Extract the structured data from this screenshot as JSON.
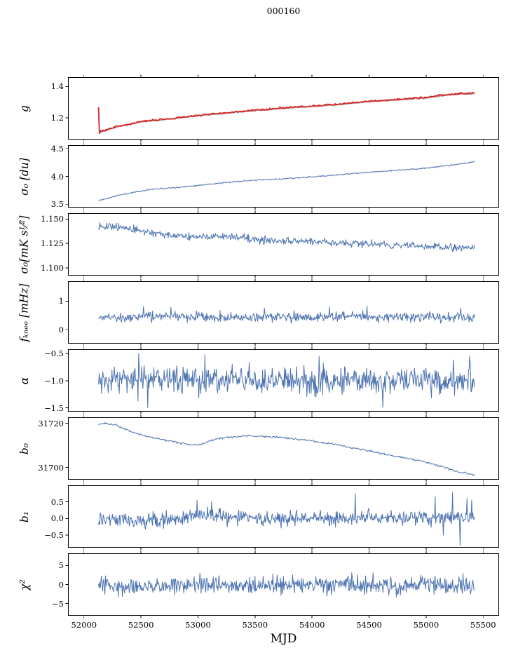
{
  "figure": {
    "title": "000160",
    "xlabel": "MJD",
    "background": "#ffffff"
  },
  "colors": {
    "blue": "#4c72b0",
    "red": "#d62728",
    "grey": "#999999",
    "spine": "#000000"
  },
  "axes": {
    "xlim": [
      51860,
      55640
    ],
    "xticks": [
      52000,
      52500,
      53000,
      53500,
      54000,
      54500,
      55000,
      55500
    ],
    "xtick_labels": [
      "52000",
      "52500",
      "53000",
      "53500",
      "54000",
      "54500",
      "55000",
      "55500"
    ],
    "x_data_range": [
      52128,
      55425
    ]
  },
  "chart_data": [
    {
      "name": "g",
      "type": "line",
      "ylabel": "g",
      "ylim": [
        1.06,
        1.46
      ],
      "ytick_values": [
        1.2,
        1.4
      ],
      "ytick_labels": [
        "1.2",
        "1.4"
      ],
      "series": [
        {
          "name": "g-model-grey",
          "color": "grey",
          "width": 1.1,
          "seed": 7,
          "points": 450,
          "noise": 0.0015,
          "trend": [
            [
              52128,
              1.2
            ],
            [
              52136,
              1.105
            ],
            [
              52300,
              1.141
            ],
            [
              52500,
              1.171
            ],
            [
              52700,
              1.186
            ],
            [
              53000,
              1.211
            ],
            [
              53300,
              1.231
            ],
            [
              53600,
              1.251
            ],
            [
              53900,
              1.266
            ],
            [
              54200,
              1.281
            ],
            [
              54500,
              1.301
            ],
            [
              54800,
              1.316
            ],
            [
              55000,
              1.326
            ],
            [
              55150,
              1.341
            ],
            [
              55300,
              1.351
            ],
            [
              55425,
              1.352
            ]
          ]
        },
        {
          "name": "g-gain-red",
          "color": "red",
          "width": 1.8,
          "seed": 3,
          "points": 460,
          "noise": 0.0028,
          "trend": [
            [
              52128,
              1.27
            ],
            [
              52131,
              1.285
            ],
            [
              52134,
              1.098
            ],
            [
              52142,
              1.113
            ],
            [
              52180,
              1.117
            ],
            [
              52300,
              1.145
            ],
            [
              52500,
              1.175
            ],
            [
              52700,
              1.19
            ],
            [
              53000,
              1.215
            ],
            [
              53300,
              1.235
            ],
            [
              53600,
              1.255
            ],
            [
              53900,
              1.27
            ],
            [
              54200,
              1.285
            ],
            [
              54500,
              1.305
            ],
            [
              54800,
              1.32
            ],
            [
              55000,
              1.33
            ],
            [
              55150,
              1.345
            ],
            [
              55300,
              1.356
            ],
            [
              55425,
              1.356
            ]
          ]
        }
      ]
    },
    {
      "name": "sigma0-du",
      "type": "line",
      "ylabel": "σ₀ [du]",
      "ylim": [
        3.44,
        4.56
      ],
      "ytick_values": [
        3.5,
        4.0,
        4.5
      ],
      "ytick_labels": [
        "3.5",
        "4.0",
        "4.5"
      ],
      "series": [
        {
          "name": "sigma0-du",
          "color": "blue",
          "width": 1.0,
          "seed": 11,
          "points": 520,
          "noise": 0.006,
          "trend": [
            [
              52128,
              3.57
            ],
            [
              52200,
              3.6
            ],
            [
              52300,
              3.66
            ],
            [
              52450,
              3.72
            ],
            [
              52600,
              3.77
            ],
            [
              52800,
              3.8
            ],
            [
              53000,
              3.84
            ],
            [
              53200,
              3.88
            ],
            [
              53400,
              3.92
            ],
            [
              53700,
              3.95
            ],
            [
              54000,
              3.99
            ],
            [
              54300,
              4.04
            ],
            [
              54600,
              4.09
            ],
            [
              54900,
              4.13
            ],
            [
              55100,
              4.17
            ],
            [
              55250,
              4.21
            ],
            [
              55425,
              4.26
            ]
          ]
        }
      ]
    },
    {
      "name": "sigma0-mK",
      "type": "line",
      "ylabel": "σ₀[mK s¹⁄²]",
      "ylim": [
        1.092,
        1.156
      ],
      "ytick_values": [
        1.1,
        1.125,
        1.15
      ],
      "ytick_labels": [
        "1.100",
        "1.125",
        "1.150"
      ],
      "series": [
        {
          "name": "sigma0-mK",
          "color": "blue",
          "width": 1.0,
          "seed": 13,
          "points": 600,
          "noise": 0.0018,
          "trend": [
            [
              52128,
              1.144
            ],
            [
              52250,
              1.142
            ],
            [
              52400,
              1.14
            ],
            [
              52550,
              1.137
            ],
            [
              52700,
              1.134
            ],
            [
              52850,
              1.133
            ],
            [
              53000,
              1.131
            ],
            [
              53150,
              1.132
            ],
            [
              53300,
              1.132
            ],
            [
              53450,
              1.13
            ],
            [
              53600,
              1.128
            ],
            [
              53800,
              1.128
            ],
            [
              54000,
              1.127
            ],
            [
              54200,
              1.126
            ],
            [
              54400,
              1.125
            ],
            [
              54700,
              1.123
            ],
            [
              55000,
              1.122
            ],
            [
              55200,
              1.121
            ],
            [
              55425,
              1.121
            ]
          ]
        }
      ]
    },
    {
      "name": "f-knee",
      "type": "line",
      "ylabel": "fₖₙₑₑ [mHz]",
      "ylim": [
        -0.5,
        1.7
      ],
      "ytick_values": [
        0,
        1
      ],
      "ytick_labels": [
        "0",
        "1"
      ],
      "series": [
        {
          "name": "f-knee",
          "color": "blue",
          "width": 1.0,
          "seed": 17,
          "points": 620,
          "noise": 0.09,
          "trend": [
            [
              52128,
              0.44
            ],
            [
              55425,
              0.43
            ]
          ],
          "spikes": [
            [
              52520,
              0.8
            ],
            [
              52760,
              0.78
            ],
            [
              53580,
              0.75
            ],
            [
              54150,
              0.8
            ],
            [
              54480,
              0.83
            ],
            [
              55300,
              0.75
            ]
          ]
        }
      ]
    },
    {
      "name": "alpha",
      "type": "line",
      "ylabel": "α",
      "ylim": [
        -1.57,
        -0.42
      ],
      "ytick_values": [
        -1.5,
        -1.0,
        -0.5
      ],
      "ytick_labels": [
        "−1.5",
        "−1.0",
        "−0.5"
      ],
      "series": [
        {
          "name": "alpha",
          "color": "blue",
          "width": 1.0,
          "seed": 19,
          "points": 620,
          "noise": 0.13,
          "trend": [
            [
              52128,
              -0.98
            ],
            [
              55425,
              -1.0
            ]
          ],
          "spikes": [
            [
              52480,
              -0.5
            ],
            [
              52560,
              -1.5
            ],
            [
              53060,
              -0.52
            ],
            [
              54060,
              -0.55
            ],
            [
              54620,
              -1.49
            ],
            [
              55380,
              -0.55
            ]
          ]
        }
      ]
    },
    {
      "name": "b0",
      "type": "line",
      "ylabel": "b₀",
      "ylim": [
        31694.5,
        31722.7
      ],
      "ytick_values": [
        31700,
        31720
      ],
      "ytick_labels": [
        "31700",
        "31720"
      ],
      "series": [
        {
          "name": "b0",
          "color": "blue",
          "width": 1.0,
          "seed": 23,
          "points": 520,
          "noise": 0.22,
          "trend": [
            [
              52128,
              31719.6
            ],
            [
              52200,
              31719.8
            ],
            [
              52280,
              31719.2
            ],
            [
              52400,
              31716.5
            ],
            [
              52500,
              31714.8
            ],
            [
              52650,
              31713
            ],
            [
              52800,
              31711.5
            ],
            [
              52950,
              31710.2
            ],
            [
              53020,
              31710.4
            ],
            [
              53150,
              31712.8
            ],
            [
              53300,
              31713.8
            ],
            [
              53450,
              31714.3
            ],
            [
              53600,
              31714
            ],
            [
              53800,
              31713.2
            ],
            [
              54000,
              31712
            ],
            [
              54200,
              31710.5
            ],
            [
              54400,
              31708.5
            ],
            [
              54600,
              31706.5
            ],
            [
              54800,
              31704.5
            ],
            [
              54950,
              31703
            ],
            [
              55100,
              31701
            ],
            [
              55200,
              31699.5
            ],
            [
              55280,
              31698
            ],
            [
              55350,
              31697.5
            ],
            [
              55425,
              31696.5
            ]
          ]
        }
      ]
    },
    {
      "name": "b1",
      "type": "line",
      "ylabel": "b₁",
      "ylim": [
        -0.88,
        1.0
      ],
      "ytick_values": [
        -0.5,
        0.0,
        0.5
      ],
      "ytick_labels": [
        "−0.5",
        "0.0",
        "0.5"
      ],
      "series": [
        {
          "name": "b1",
          "color": "blue",
          "width": 1.0,
          "seed": 29,
          "points": 650,
          "noise": 0.11,
          "trend": [
            [
              52128,
              0.02
            ],
            [
              52400,
              -0.08
            ],
            [
              52700,
              -0.05
            ],
            [
              53000,
              0.1
            ],
            [
              53200,
              0.05
            ],
            [
              53500,
              0.0
            ],
            [
              54000,
              0.0
            ],
            [
              54500,
              0.02
            ],
            [
              55000,
              0.0
            ],
            [
              55425,
              0.05
            ]
          ],
          "spikes": [
            [
              52990,
              0.55
            ],
            [
              53120,
              0.5
            ],
            [
              54380,
              0.75
            ],
            [
              55080,
              0.65
            ],
            [
              55150,
              -0.5
            ],
            [
              55230,
              0.78
            ],
            [
              55300,
              -0.82
            ],
            [
              55360,
              0.6
            ],
            [
              55400,
              0.55
            ]
          ]
        }
      ]
    },
    {
      "name": "chi2",
      "type": "line",
      "ylabel": "χ²",
      "ylim": [
        -8.2,
        8.2
      ],
      "ytick_values": [
        -5,
        0,
        5
      ],
      "ytick_labels": [
        "−5",
        "0",
        "5"
      ],
      "series": [
        {
          "name": "chi2",
          "color": "blue",
          "width": 1.0,
          "seed": 31,
          "points": 650,
          "noise": 1.15,
          "trend": [
            [
              52128,
              -0.4
            ],
            [
              53000,
              -0.3
            ],
            [
              54000,
              -0.2
            ],
            [
              55425,
              -0.1
            ]
          ]
        }
      ]
    }
  ]
}
